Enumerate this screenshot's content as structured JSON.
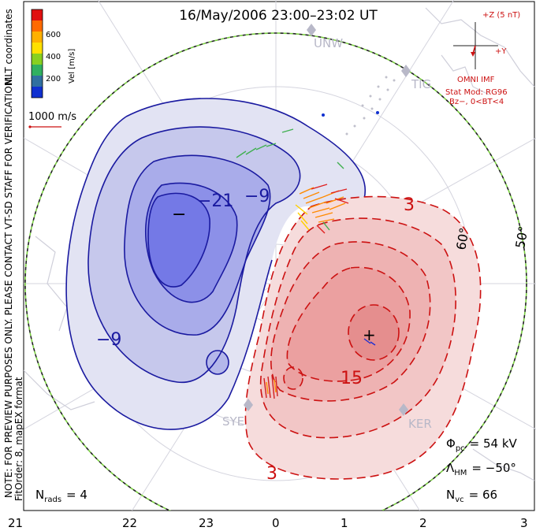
{
  "title": "16/May/2006 23:00–23:02 UT",
  "side_note": "NOTE: FOR PREVIEW PURPOSES ONLY. PLEASE CONTACT VT-SD STAFF FOR VERIFICATION.",
  "fit_order": "FitOrder: 8, mapEX format",
  "mlt_label": "MLT coordinates",
  "colorbar": {
    "label": "Vel [m/s]",
    "ticks": [
      "600",
      "400",
      "200"
    ],
    "colors": [
      "#e01010",
      "#ff6a00",
      "#ffb000",
      "#ffe000",
      "#88d020",
      "#30b060",
      "#3070a0",
      "#1030d0"
    ]
  },
  "scale_vector": {
    "label": "1000 m/s",
    "color": "#cc1111"
  },
  "imf": {
    "top_label": "+Z (5 nT)",
    "right_label": "+Y",
    "source": "OMNI IMF",
    "model": "Stat Mod: RG96",
    "condition": "Bz−, 0<BT<4",
    "color": "#cc1111"
  },
  "stations": [
    "UNW",
    "TIG",
    "SYE",
    "KER"
  ],
  "lat_labels": [
    "60°",
    "50°"
  ],
  "contours": {
    "negative": [
      "−9",
      "−21",
      "−9"
    ],
    "positive": [
      "3",
      "15",
      "3"
    ],
    "min_marker": "−",
    "max_marker": "+",
    "negative_color": "#1a1aa0",
    "positive_color": "#cc1111"
  },
  "stats": {
    "phi_pc": {
      "symbol": "Φ",
      "sub": "pc",
      "value": "= 54 kV"
    },
    "lambda_hm": {
      "symbol": "Λ",
      "sub": "HM",
      "value": "= −50°"
    },
    "n_vc": {
      "symbol": "N",
      "sub": "vc",
      "value": "= 66"
    },
    "n_rads": {
      "symbol": "N",
      "sub": "rads",
      "value": "= 4"
    }
  },
  "mlt_axis": [
    "21",
    "22",
    "23",
    "0",
    "1",
    "2",
    "3"
  ],
  "chart_data": {
    "type": "map",
    "title": "16/May/2006 23:00–23:02 UT",
    "coordinates": "MLT coordinates",
    "mlt_ticks": [
      21,
      22,
      23,
      0,
      1,
      2,
      3
    ],
    "latitude_labels_deg": [
      60,
      50
    ],
    "cross_polar_cap_potential_kV": 54,
    "heppner_maynard_boundary_deg": -50,
    "n_vectors": 66,
    "n_radars": 4,
    "fit_order": 8,
    "model": "RG96",
    "imf": "Bz−, 0<BT<4",
    "velocity_colorbar_ticks_mps": [
      200,
      400,
      600
    ],
    "reference_vector_mps": 1000,
    "potential_contour_labels_kV": [
      -9,
      -21,
      -9,
      3,
      15,
      3
    ]
  }
}
